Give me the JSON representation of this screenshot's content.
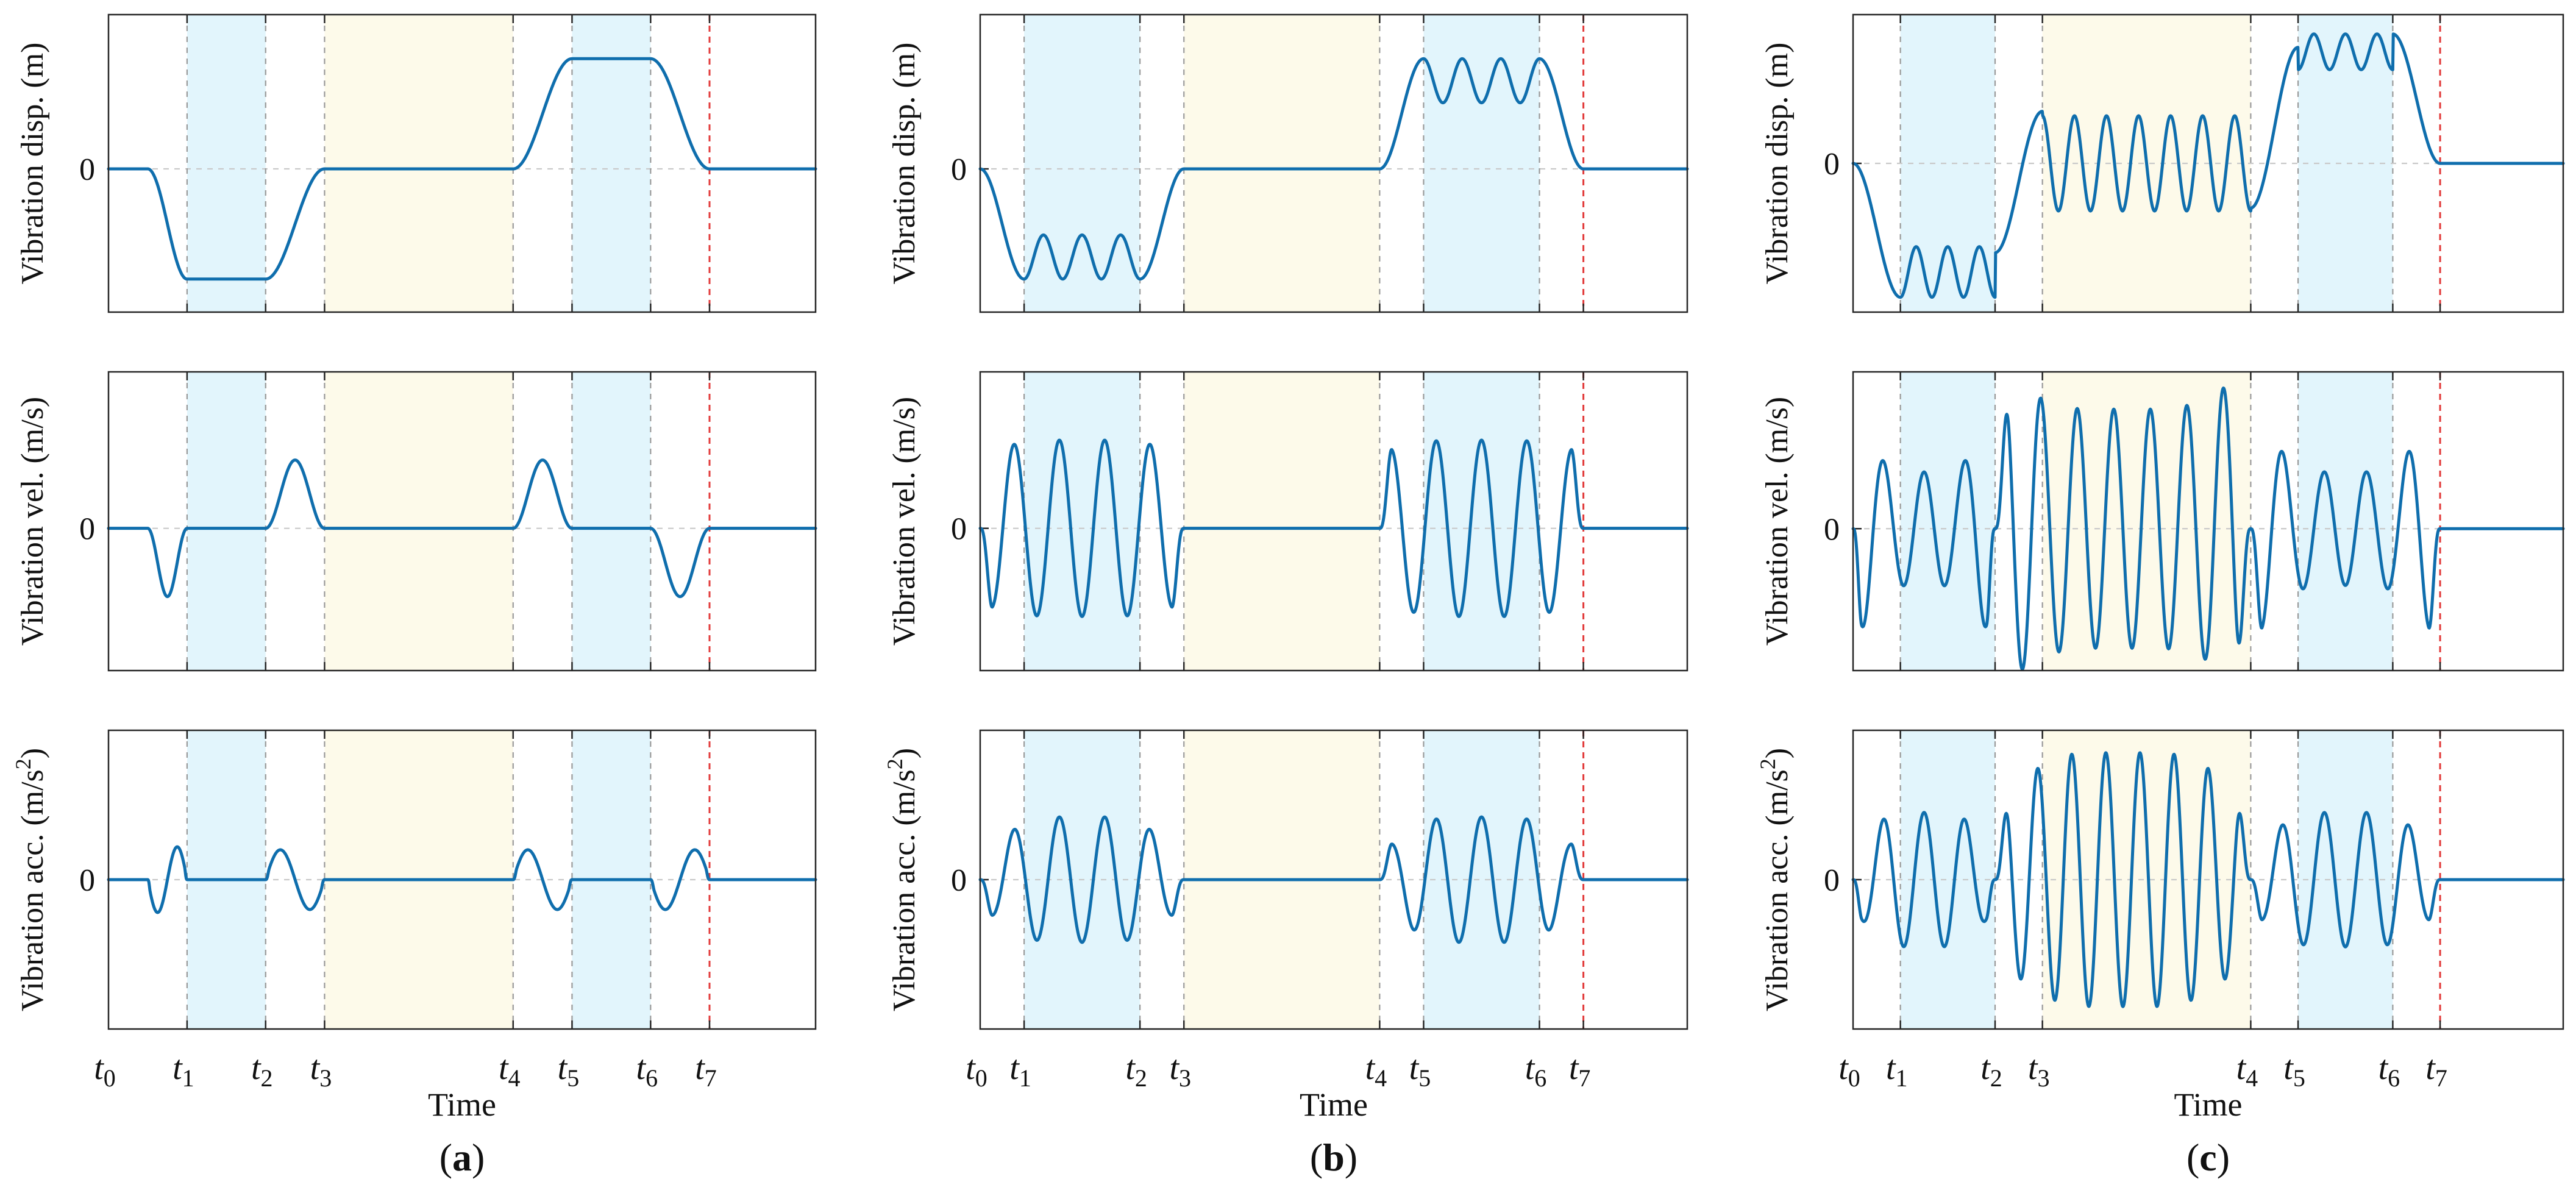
{
  "figure": {
    "colors": {
      "signal": "#0f6ead",
      "phase_blue": "#e2f5fc",
      "phase_yellow": "#fdfaea",
      "grid": "#c9c9c9",
      "marker_gray": "#9a9a9a",
      "marker_red": "#e23a3a"
    },
    "xlabel": "Time",
    "time_ticks": [
      {
        "sym": "t",
        "sub": "0",
        "t": 0
      },
      {
        "sym": "t",
        "sub": "1",
        "t": 1
      },
      {
        "sym": "t",
        "sub": "2",
        "t": 2
      },
      {
        "sym": "t",
        "sub": "3",
        "t": 3
      },
      {
        "sym": "t",
        "sub": "4",
        "t": 4
      },
      {
        "sym": "t",
        "sub": "5",
        "t": 5
      },
      {
        "sym": "t",
        "sub": "6",
        "t": 6
      },
      {
        "sym": "t",
        "sub": "7",
        "t": 7
      }
    ],
    "end_marker_tick": "t7",
    "shaded_phases": [
      {
        "from": "t1",
        "to": "t2",
        "color": "phase_blue"
      },
      {
        "from": "t3",
        "to": "t4",
        "color": "phase_yellow"
      },
      {
        "from": "t5",
        "to": "t6",
        "color": "phase_blue"
      }
    ],
    "row_labels": [
      {
        "prefix": "Vibration disp. (m)",
        "power": ""
      },
      {
        "prefix": "Vibration vel. (m/s)",
        "power": ""
      },
      {
        "prefix": "Vibration acc. (m/s",
        "power": "2",
        "suffix": ")"
      }
    ],
    "zero_label": "0"
  },
  "chart_data": [
    {
      "panel": "a",
      "type": "line",
      "caption_open": "(",
      "caption_letter": "a",
      "caption_close": ")",
      "x": "Time",
      "tick_times": [
        0,
        1.0,
        2.0,
        2.75,
        5.15,
        5.9,
        6.9,
        7.65
      ],
      "xlim": [
        0,
        9.0
      ],
      "series": [
        {
          "name": "Vibration disp. (m)",
          "ylim": [
            -1.3,
            1.4
          ],
          "segments": [
            {
              "kind": "hold",
              "t0": 0,
              "t1": 0.5,
              "value": 0
            },
            {
              "kind": "ramp",
              "t0": 0.5,
              "t1": 1.0,
              "from": 0,
              "to": -1.0
            },
            {
              "kind": "hold",
              "t0": 1.0,
              "t1": 2.0,
              "value": -1.0
            },
            {
              "kind": "ramp",
              "t0": 2.0,
              "t1": 2.75,
              "from": -1.0,
              "to": 0
            },
            {
              "kind": "hold",
              "t0": 2.75,
              "t1": 5.15,
              "value": 0
            },
            {
              "kind": "ramp",
              "t0": 5.15,
              "t1": 5.9,
              "from": 0,
              "to": 1.0
            },
            {
              "kind": "hold",
              "t0": 5.9,
              "t1": 6.9,
              "value": 1.0
            },
            {
              "kind": "ramp",
              "t0": 6.9,
              "t1": 7.65,
              "from": 1.0,
              "to": 0
            },
            {
              "kind": "hold",
              "t0": 7.65,
              "t1": 9.0,
              "value": 0
            }
          ]
        },
        {
          "name": "Vibration vel. (m/s)",
          "ylim": [
            -1.0,
            1.1
          ],
          "segments": [
            {
              "kind": "hold",
              "t0": 0,
              "t1": 0.5,
              "value": 0
            },
            {
              "kind": "bump",
              "t0": 0.5,
              "t1": 1.0,
              "amp": -0.48
            },
            {
              "kind": "hold",
              "t0": 1.0,
              "t1": 2.0,
              "value": 0
            },
            {
              "kind": "bump",
              "t0": 2.0,
              "t1": 2.75,
              "amp": 0.48
            },
            {
              "kind": "hold",
              "t0": 2.75,
              "t1": 5.15,
              "value": 0
            },
            {
              "kind": "bump",
              "t0": 5.15,
              "t1": 5.9,
              "amp": 0.48
            },
            {
              "kind": "hold",
              "t0": 5.9,
              "t1": 6.9,
              "value": 0
            },
            {
              "kind": "bump",
              "t0": 6.9,
              "t1": 7.65,
              "amp": -0.48
            },
            {
              "kind": "hold",
              "t0": 7.65,
              "t1": 9.0,
              "value": 0
            }
          ]
        },
        {
          "name": "Vibration acc. (m/s2)",
          "ylim": [
            -1.0,
            1.0
          ],
          "segments": [
            {
              "kind": "hold",
              "t0": 0,
              "t1": 0.5,
              "value": 0
            },
            {
              "kind": "sine",
              "t0": 0.5,
              "t1": 1.0,
              "cycles": 1,
              "amp": 0.22,
              "phase": "neg"
            },
            {
              "kind": "hold",
              "t0": 1.0,
              "t1": 2.0,
              "value": 0
            },
            {
              "kind": "sine",
              "t0": 2.0,
              "t1": 2.75,
              "cycles": 1,
              "amp": 0.2,
              "phase": "pos"
            },
            {
              "kind": "hold",
              "t0": 2.75,
              "t1": 5.15,
              "value": 0
            },
            {
              "kind": "sine",
              "t0": 5.15,
              "t1": 5.9,
              "cycles": 1,
              "amp": 0.2,
              "phase": "pos"
            },
            {
              "kind": "hold",
              "t0": 5.9,
              "t1": 6.9,
              "value": 0
            },
            {
              "kind": "sine",
              "t0": 6.9,
              "t1": 7.65,
              "cycles": 1,
              "amp": 0.2,
              "phase": "neg"
            },
            {
              "kind": "hold",
              "t0": 7.65,
              "t1": 9.0,
              "value": 0
            }
          ]
        }
      ]
    },
    {
      "panel": "b",
      "type": "line",
      "caption_open": "(",
      "caption_letter": "b",
      "caption_close": ")",
      "x": "Time",
      "tick_times": [
        0,
        0.55,
        2.0,
        2.55,
        5.0,
        5.55,
        7.0,
        7.55
      ],
      "xlim": [
        0,
        8.85
      ],
      "series": [
        {
          "name": "Vibration disp. (m)",
          "ylim": [
            -1.3,
            1.4
          ],
          "segments": [
            {
              "kind": "ramp",
              "t0": 0,
              "t1": 0.55,
              "from": 0,
              "to": -1.0
            },
            {
              "kind": "osc",
              "t0": 0.55,
              "t1": 2.0,
              "base": -0.8,
              "amp": 0.2,
              "cycles": 3,
              "start": "low"
            },
            {
              "kind": "ramp",
              "t0": 2.0,
              "t1": 2.55,
              "from": -1.0,
              "to": 0
            },
            {
              "kind": "hold",
              "t0": 2.55,
              "t1": 5.0,
              "value": 0
            },
            {
              "kind": "ramp",
              "t0": 5.0,
              "t1": 5.55,
              "from": 0,
              "to": 1.0
            },
            {
              "kind": "osc",
              "t0": 5.55,
              "t1": 7.0,
              "base": 0.8,
              "amp": 0.2,
              "cycles": 3,
              "start": "high"
            },
            {
              "kind": "ramp",
              "t0": 7.0,
              "t1": 7.55,
              "from": 1.0,
              "to": 0
            },
            {
              "kind": "hold",
              "t0": 7.55,
              "t1": 8.85,
              "value": 0
            }
          ]
        },
        {
          "name": "Vibration vel. (m/s)",
          "ylim": [
            -1.0,
            1.1
          ],
          "segments": [
            {
              "kind": "sine",
              "t0": 0,
              "t1": 2.55,
              "cycles": 4.5,
              "amp": 0.62,
              "phase": "neg",
              "edge_amp": 0.55
            },
            {
              "kind": "hold",
              "t0": 2.55,
              "t1": 5.0,
              "value": 0
            },
            {
              "kind": "sine",
              "t0": 5.0,
              "t1": 7.55,
              "cycles": 4.5,
              "amp": 0.62,
              "phase": "pos",
              "edge_amp": 0.55
            },
            {
              "kind": "hold",
              "t0": 7.55,
              "t1": 8.85,
              "value": 0
            }
          ]
        },
        {
          "name": "Vibration acc. (m/s2)",
          "ylim": [
            -1.0,
            1.0
          ],
          "segments": [
            {
              "kind": "sine",
              "t0": 0,
              "t1": 2.55,
              "cycles": 4.5,
              "amp": 0.42,
              "phase": "neg",
              "edge_amp": 0.22
            },
            {
              "kind": "hold",
              "t0": 2.55,
              "t1": 5.0,
              "value": 0
            },
            {
              "kind": "sine",
              "t0": 5.0,
              "t1": 7.55,
              "cycles": 4.5,
              "amp": 0.42,
              "phase": "pos",
              "edge_amp": 0.22
            },
            {
              "kind": "hold",
              "t0": 7.55,
              "t1": 8.85,
              "value": 0
            }
          ]
        }
      ]
    },
    {
      "panel": "c",
      "type": "line",
      "caption_open": "(",
      "caption_letter": "c",
      "caption_close": ")",
      "x": "Time",
      "tick_times": [
        0,
        0.5,
        1.5,
        2.0,
        4.2,
        4.7,
        5.7,
        6.2
      ],
      "xlim": [
        0,
        7.5
      ],
      "series": [
        {
          "name": "Vibration disp. (m)",
          "ylim": [
            -1.0,
            1.0
          ],
          "segments": [
            {
              "kind": "ramp",
              "t0": 0,
              "t1": 0.5,
              "from": 0,
              "to": -0.9
            },
            {
              "kind": "osc",
              "t0": 0.5,
              "t1": 1.5,
              "base": -0.73,
              "amp": 0.17,
              "cycles": 3,
              "start": "low"
            },
            {
              "kind": "ramp",
              "t0": 1.5,
              "t1": 2.0,
              "from": -0.6,
              "to": 0.35
            },
            {
              "kind": "osc",
              "t0": 2.0,
              "t1": 4.2,
              "base": 0.0,
              "amp": 0.32,
              "cycles": 6.5,
              "start": "high"
            },
            {
              "kind": "ramp",
              "t0": 4.2,
              "t1": 4.7,
              "from": -0.3,
              "to": 0.78
            },
            {
              "kind": "osc",
              "t0": 4.7,
              "t1": 5.7,
              "base": 0.75,
              "amp": 0.12,
              "cycles": 3,
              "start": "low"
            },
            {
              "kind": "ramp",
              "t0": 5.7,
              "t1": 6.2,
              "from": 0.87,
              "to": 0
            },
            {
              "kind": "hold",
              "t0": 6.2,
              "t1": 7.5,
              "value": 0
            }
          ]
        },
        {
          "name": "Vibration vel. (m/s)",
          "ylim": [
            -0.95,
            1.05
          ],
          "segments": [
            {
              "kind": "sine",
              "t0": 0,
              "t1": 1.5,
              "cycles": 3.5,
              "amp": 0.38,
              "phase": "neg",
              "edge_amp": 0.7
            },
            {
              "kind": "sine",
              "t0": 1.5,
              "t1": 4.2,
              "cycles": 7,
              "amp": 0.8,
              "phase": "pos",
              "edge_amp": 1.0
            },
            {
              "kind": "sine",
              "t0": 4.2,
              "t1": 6.2,
              "cycles": 4.5,
              "amp": 0.38,
              "phase": "neg",
              "edge_amp": 0.7
            },
            {
              "kind": "hold",
              "t0": 6.2,
              "t1": 7.5,
              "value": 0
            }
          ]
        },
        {
          "name": "Vibration acc. (m/s2)",
          "ylim": [
            -1.0,
            1.0
          ],
          "segments": [
            {
              "kind": "sine",
              "t0": 0,
              "t1": 1.5,
              "cycles": 3.5,
              "amp": 0.45,
              "phase": "neg",
              "edge_amp": 0.25
            },
            {
              "kind": "sine",
              "t0": 1.5,
              "t1": 4.2,
              "cycles": 7.5,
              "amp": 0.85,
              "phase": "pos",
              "edge_amp": 0.6
            },
            {
              "kind": "sine",
              "t0": 4.2,
              "t1": 6.2,
              "cycles": 4.5,
              "amp": 0.45,
              "phase": "neg",
              "edge_amp": 0.25
            },
            {
              "kind": "hold",
              "t0": 6.2,
              "t1": 7.5,
              "value": 0
            }
          ]
        }
      ]
    }
  ]
}
